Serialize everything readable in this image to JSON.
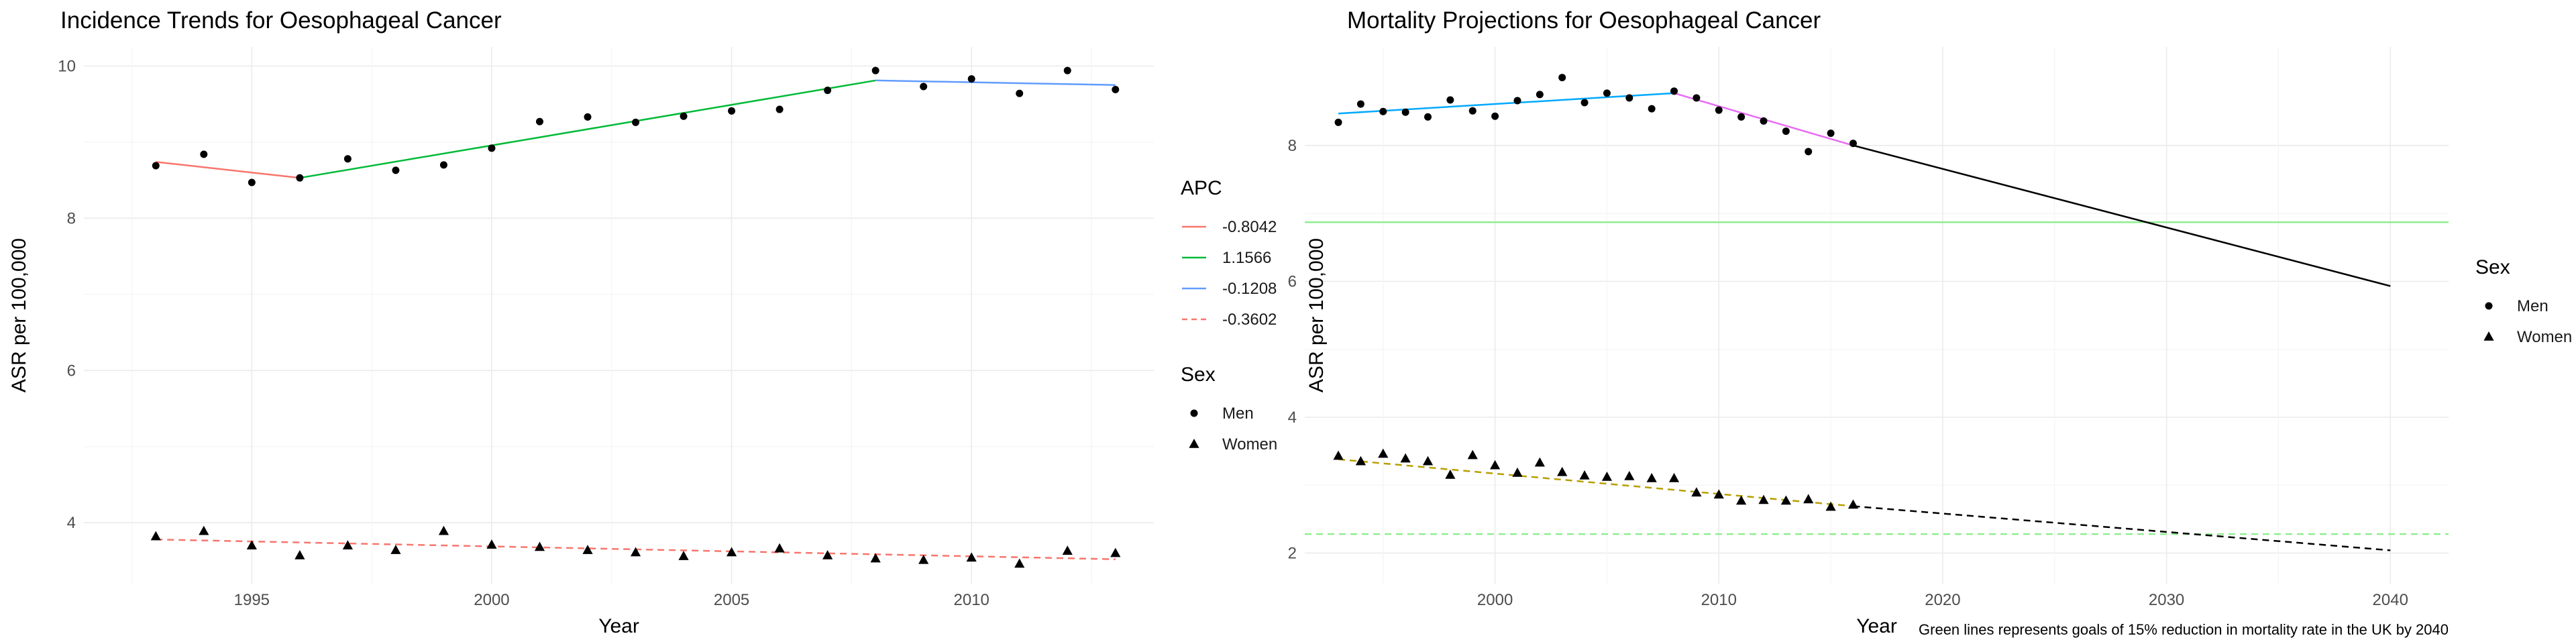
{
  "chart_data": [
    {
      "type": "scatter",
      "title": "Incidence Trends for Oesophageal Cancer",
      "xlabel": "Year",
      "ylabel": "ASR per 100,000",
      "xlim": [
        1991.5,
        2013.8
      ],
      "ylim": [
        3.2,
        10.25
      ],
      "x_ticks": [
        1995,
        2000,
        2005,
        2010
      ],
      "x_tick_labels": [
        "1995",
        "2000",
        "2005",
        "2010"
      ],
      "y_ticks": [
        4,
        6,
        8,
        10
      ],
      "y_tick_labels": [
        "4",
        "6",
        "8",
        "10"
      ],
      "grid": true,
      "series": [
        {
          "name": "Men",
          "shape": "circle",
          "points": [
            [
              1993,
              8.69
            ],
            [
              1994,
              8.84
            ],
            [
              1995,
              8.47
            ],
            [
              1996,
              8.53
            ],
            [
              1997,
              8.78
            ],
            [
              1998,
              8.63
            ],
            [
              1999,
              8.7
            ],
            [
              2000,
              8.92
            ],
            [
              2001,
              9.27
            ],
            [
              2002,
              9.33
            ],
            [
              2003,
              9.26
            ],
            [
              2004,
              9.34
            ],
            [
              2005,
              9.41
            ],
            [
              2006,
              9.43
            ],
            [
              2007,
              9.68
            ],
            [
              2008,
              9.94
            ],
            [
              2009,
              9.73
            ],
            [
              2010,
              9.83
            ],
            [
              2011,
              9.64
            ],
            [
              2012,
              9.94
            ],
            [
              2013,
              9.69
            ]
          ]
        },
        {
          "name": "Women",
          "shape": "triangle",
          "points": [
            [
              1993,
              3.82
            ],
            [
              1994,
              3.89
            ],
            [
              1995,
              3.7
            ],
            [
              1996,
              3.57
            ],
            [
              1997,
              3.7
            ],
            [
              1998,
              3.64
            ],
            [
              1999,
              3.89
            ],
            [
              2000,
              3.71
            ],
            [
              2001,
              3.68
            ],
            [
              2002,
              3.64
            ],
            [
              2003,
              3.61
            ],
            [
              2004,
              3.56
            ],
            [
              2005,
              3.61
            ],
            [
              2006,
              3.66
            ],
            [
              2007,
              3.57
            ],
            [
              2008,
              3.53
            ],
            [
              2009,
              3.51
            ],
            [
              2010,
              3.54
            ],
            [
              2011,
              3.46
            ],
            [
              2012,
              3.63
            ],
            [
              2013,
              3.6
            ]
          ]
        }
      ],
      "trend_lines": [
        {
          "label": "-0.8042",
          "color": "#F8766D",
          "dash": false,
          "points": [
            [
              1993,
              8.74
            ],
            [
              1996,
              8.53
            ]
          ]
        },
        {
          "label": "1.1566",
          "color": "#00BA38",
          "dash": false,
          "points": [
            [
              1996,
              8.53
            ],
            [
              2008,
              9.81
            ]
          ]
        },
        {
          "label": "-0.1208",
          "color": "#619CFF",
          "dash": false,
          "points": [
            [
              2008,
              9.81
            ],
            [
              2013,
              9.75
            ]
          ]
        },
        {
          "label": "-0.3602",
          "color": "#F8766D",
          "dash": true,
          "points": [
            [
              1993,
              3.78
            ],
            [
              2013,
              3.52
            ]
          ]
        }
      ],
      "legend_apc": {
        "title": "APC",
        "items": [
          {
            "label": "-0.8042",
            "color": "#F8766D",
            "dash": false
          },
          {
            "label": "1.1566",
            "color": "#00BA38",
            "dash": false
          },
          {
            "label": "-0.1208",
            "color": "#619CFF",
            "dash": false
          },
          {
            "label": "-0.3602",
            "color": "#F8766D",
            "dash": true
          }
        ]
      },
      "legend_sex": {
        "title": "Sex",
        "items": [
          {
            "label": "Men",
            "shape": "circle"
          },
          {
            "label": "Women",
            "shape": "triangle"
          }
        ]
      }
    },
    {
      "type": "scatter",
      "title": "Mortality Projections for Oesophageal Cancer",
      "xlabel": "Year",
      "ylabel": "ASR per 100,000",
      "xlim": [
        1991.5,
        2042.6
      ],
      "ylim": [
        1.55,
        9.45
      ],
      "x_ticks": [
        2000,
        2010,
        2020,
        2030,
        2040
      ],
      "x_tick_labels": [
        "2000",
        "2010",
        "2020",
        "2030",
        "2040"
      ],
      "y_ticks": [
        2,
        4,
        6,
        8
      ],
      "y_tick_labels": [
        "2",
        "4",
        "6",
        "8"
      ],
      "grid": true,
      "series": [
        {
          "name": "Men",
          "shape": "circle",
          "points": [
            [
              1993,
              8.34
            ],
            [
              1994,
              8.61
            ],
            [
              1995,
              8.5
            ],
            [
              1996,
              8.49
            ],
            [
              1997,
              8.42
            ],
            [
              1998,
              8.67
            ],
            [
              1999,
              8.51
            ],
            [
              2000,
              8.43
            ],
            [
              2001,
              8.66
            ],
            [
              2002,
              8.75
            ],
            [
              2003,
              9.0
            ],
            [
              2004,
              8.63
            ],
            [
              2005,
              8.77
            ],
            [
              2006,
              8.7
            ],
            [
              2007,
              8.54
            ],
            [
              2008,
              8.8
            ],
            [
              2009,
              8.7
            ],
            [
              2010,
              8.52
            ],
            [
              2011,
              8.42
            ],
            [
              2012,
              8.36
            ],
            [
              2013,
              8.21
            ],
            [
              2014,
              7.91
            ],
            [
              2015,
              8.18
            ],
            [
              2016,
              8.03
            ]
          ]
        },
        {
          "name": "Women",
          "shape": "triangle",
          "points": [
            [
              1993,
              3.43
            ],
            [
              1994,
              3.35
            ],
            [
              1995,
              3.46
            ],
            [
              1996,
              3.39
            ],
            [
              1997,
              3.35
            ],
            [
              1998,
              3.15
            ],
            [
              1999,
              3.44
            ],
            [
              2000,
              3.29
            ],
            [
              2001,
              3.18
            ],
            [
              2002,
              3.33
            ],
            [
              2003,
              3.19
            ],
            [
              2004,
              3.14
            ],
            [
              2005,
              3.12
            ],
            [
              2006,
              3.13
            ],
            [
              2007,
              3.1
            ],
            [
              2008,
              3.1
            ],
            [
              2009,
              2.89
            ],
            [
              2010,
              2.86
            ],
            [
              2011,
              2.77
            ],
            [
              2012,
              2.78
            ],
            [
              2013,
              2.77
            ],
            [
              2014,
              2.79
            ],
            [
              2015,
              2.68
            ],
            [
              2016,
              2.71
            ]
          ]
        }
      ],
      "trend_lines": [
        {
          "color": "#00A9FF",
          "dash": false,
          "points": [
            [
              1993,
              8.47
            ],
            [
              2008,
              8.77
            ]
          ]
        },
        {
          "color": "#E76BF3",
          "dash": false,
          "points": [
            [
              2008,
              8.77
            ],
            [
              2016,
              8.0
            ]
          ]
        },
        {
          "color": "#000000",
          "dash": false,
          "points": [
            [
              2016,
              8.0
            ],
            [
              2040,
              5.93
            ]
          ]
        },
        {
          "color": "#B79F00",
          "dash": true,
          "points": [
            [
              1993,
              3.38
            ],
            [
              2016,
              2.69
            ]
          ]
        },
        {
          "color": "#000000",
          "dash": true,
          "points": [
            [
              2016,
              2.69
            ],
            [
              2040,
              2.04
            ]
          ]
        }
      ],
      "goal_lines": [
        {
          "value": 6.87,
          "color": "#90EE90",
          "dash": false
        },
        {
          "value": 2.28,
          "color": "#90EE90",
          "dash": true
        }
      ],
      "legend_sex": {
        "title": "Sex",
        "items": [
          {
            "label": "Men",
            "shape": "circle"
          },
          {
            "label": "Women",
            "shape": "triangle"
          }
        ]
      },
      "caption": "Green lines represents goals of 15% reduction in mortality rate in the UK by 2040"
    }
  ]
}
